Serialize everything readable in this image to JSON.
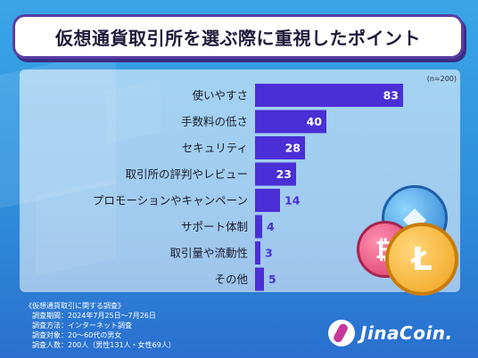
{
  "title": "仮想通貨取引所を選ぶ際に重視したポイント",
  "sample_note": "(n=200)",
  "colors": {
    "bar": "#4b2fd6",
    "bar_edge": "#3a22b3",
    "title_border": "#5a3fa8",
    "background_top": "#3aa5e6",
    "background_bottom": "#2a6fcf"
  },
  "chart_data": {
    "type": "bar",
    "orientation": "horizontal",
    "categories": [
      "使いやすさ",
      "手数料の低さ",
      "セキュリティ",
      "取引所の評判やレビュー",
      "プロモーションやキャンペーン",
      "サポート体制",
      "取引量や流動性",
      "その他"
    ],
    "values": [
      83,
      40,
      28,
      23,
      14,
      4,
      3,
      5
    ],
    "xlim": [
      0,
      83
    ],
    "grid": false,
    "legend": "none"
  },
  "survey": {
    "heading": "《仮想通貨取引に関する調査》",
    "lines": [
      "調査期間：2024年7月25日〜7月26日",
      "調査方法：インターネット調査",
      "調査対象：20〜60代の男女",
      "調査人数：200人（男性131人・女性69人）"
    ]
  },
  "logo": {
    "text": "JinaCoin."
  },
  "icons": [
    "ethereum-coin-icon",
    "bitcoin-coin-icon",
    "litecoin-coin-icon",
    "jinacoin-logo-icon"
  ]
}
